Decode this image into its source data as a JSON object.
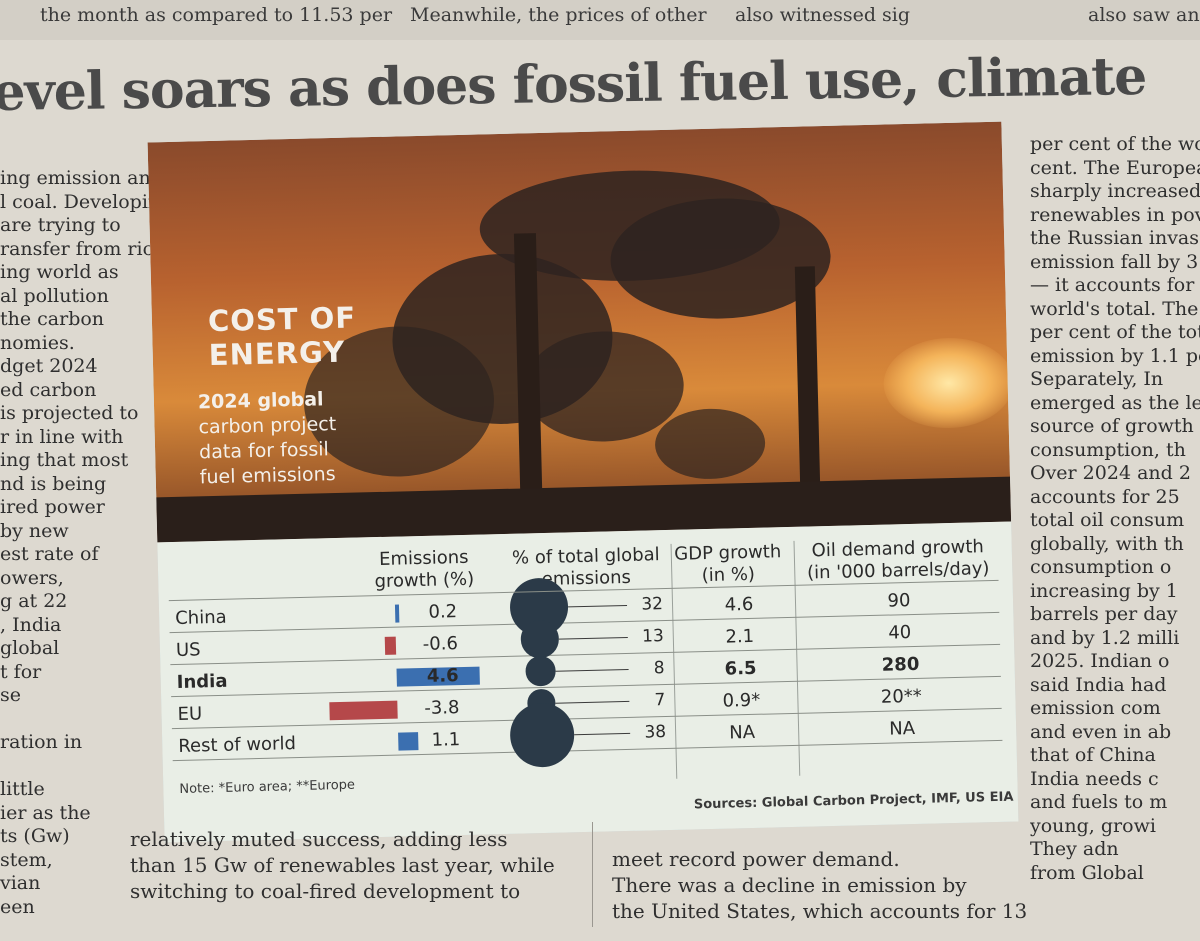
{
  "top_strip": [
    "the month as compared to 11.53 per",
    "Meanwhile, the prices of other",
    "also witnessed sig",
    "also saw an"
  ],
  "headline": "evel soars as does fossil fuel use, climate",
  "left_column": [
    "ing emission and",
    "l coal. Developing",
    "are trying to",
    "ransfer from rich",
    "ing world as",
    "al pollution",
    "the carbon",
    "nomies.",
    "dget 2024",
    "ed carbon",
    "is projected to",
    "r in line with",
    "ing that most",
    "nd is being",
    "ired power",
    "by new",
    "est rate of",
    "owers,",
    "g at 22",
    ", India",
    "global",
    "t for",
    "se",
    "",
    "ration in",
    "",
    "little",
    "ier as the",
    "ts (Gw)",
    "stem,",
    "vian",
    "een"
  ],
  "right_column": [
    "per cent of the wo",
    "cent. The Europea",
    "sharply increased",
    "renewables in pov",
    "the Russian invas",
    "emission fall by 3.",
    "— it accounts for",
    "world's total. The",
    "per cent of the tot",
    "emission by 1.1 pe",
    "Separately, In",
    "emerged as the le",
    "source of growth",
    "consumption, th",
    "Over 2024 and 2",
    "accounts for 25",
    "total oil consum",
    "globally, with th",
    "consumption o",
    "increasing by 1",
    "barrels per day",
    "and by 1.2 milli",
    "2025. Indian o",
    "said India had",
    "emission com",
    "and even in ab",
    "that of China",
    "India needs c",
    "and fuels to m",
    "young, growi",
    "They adn",
    "from Global"
  ],
  "bottom_left": [
    "relatively muted success, adding less",
    "than 15 Gw of renewables last year, while",
    "switching to coal-fired development to"
  ],
  "bottom_right": [
    "meet record power demand.",
    "There was a decline in emission by",
    "the United States, which accounts for 13"
  ],
  "infographic": {
    "title_lines": [
      "COST OF",
      "ENERGY"
    ],
    "subtitle_lines": [
      "2024 global",
      "carbon project",
      "data for fossil",
      "fuel emissions"
    ],
    "note": "Note: *Euro area; **Europe",
    "sources": "Sources: Global Carbon Project, IMF, US EIA"
  },
  "chart_data": {
    "type": "table",
    "columns": [
      "Emissions growth (%)",
      "% of total global emissions",
      "GDP growth (in %)",
      "Oil demand growth (in '000 barrels/day)"
    ],
    "rows": [
      {
        "country": "China",
        "emissions_growth": 0.2,
        "share_of_global": 32,
        "gdp_growth": "4.6",
        "oil_demand_growth": "90"
      },
      {
        "country": "US",
        "emissions_growth": -0.6,
        "share_of_global": 13,
        "gdp_growth": "2.1",
        "oil_demand_growth": "40"
      },
      {
        "country": "India",
        "emissions_growth": 4.6,
        "share_of_global": 8,
        "gdp_growth": "6.5",
        "oil_demand_growth": "280"
      },
      {
        "country": "EU",
        "emissions_growth": -3.8,
        "share_of_global": 7,
        "gdp_growth": "0.9*",
        "oil_demand_growth": "20**"
      },
      {
        "country": "Rest of world",
        "emissions_growth": 1.1,
        "share_of_global": 38,
        "gdp_growth": "NA",
        "oil_demand_growth": "NA"
      }
    ],
    "highlight_row": "India",
    "colors": {
      "positive": "#3b6fb0",
      "negative": "#b5484a",
      "bubble": "#2b3a48"
    }
  }
}
